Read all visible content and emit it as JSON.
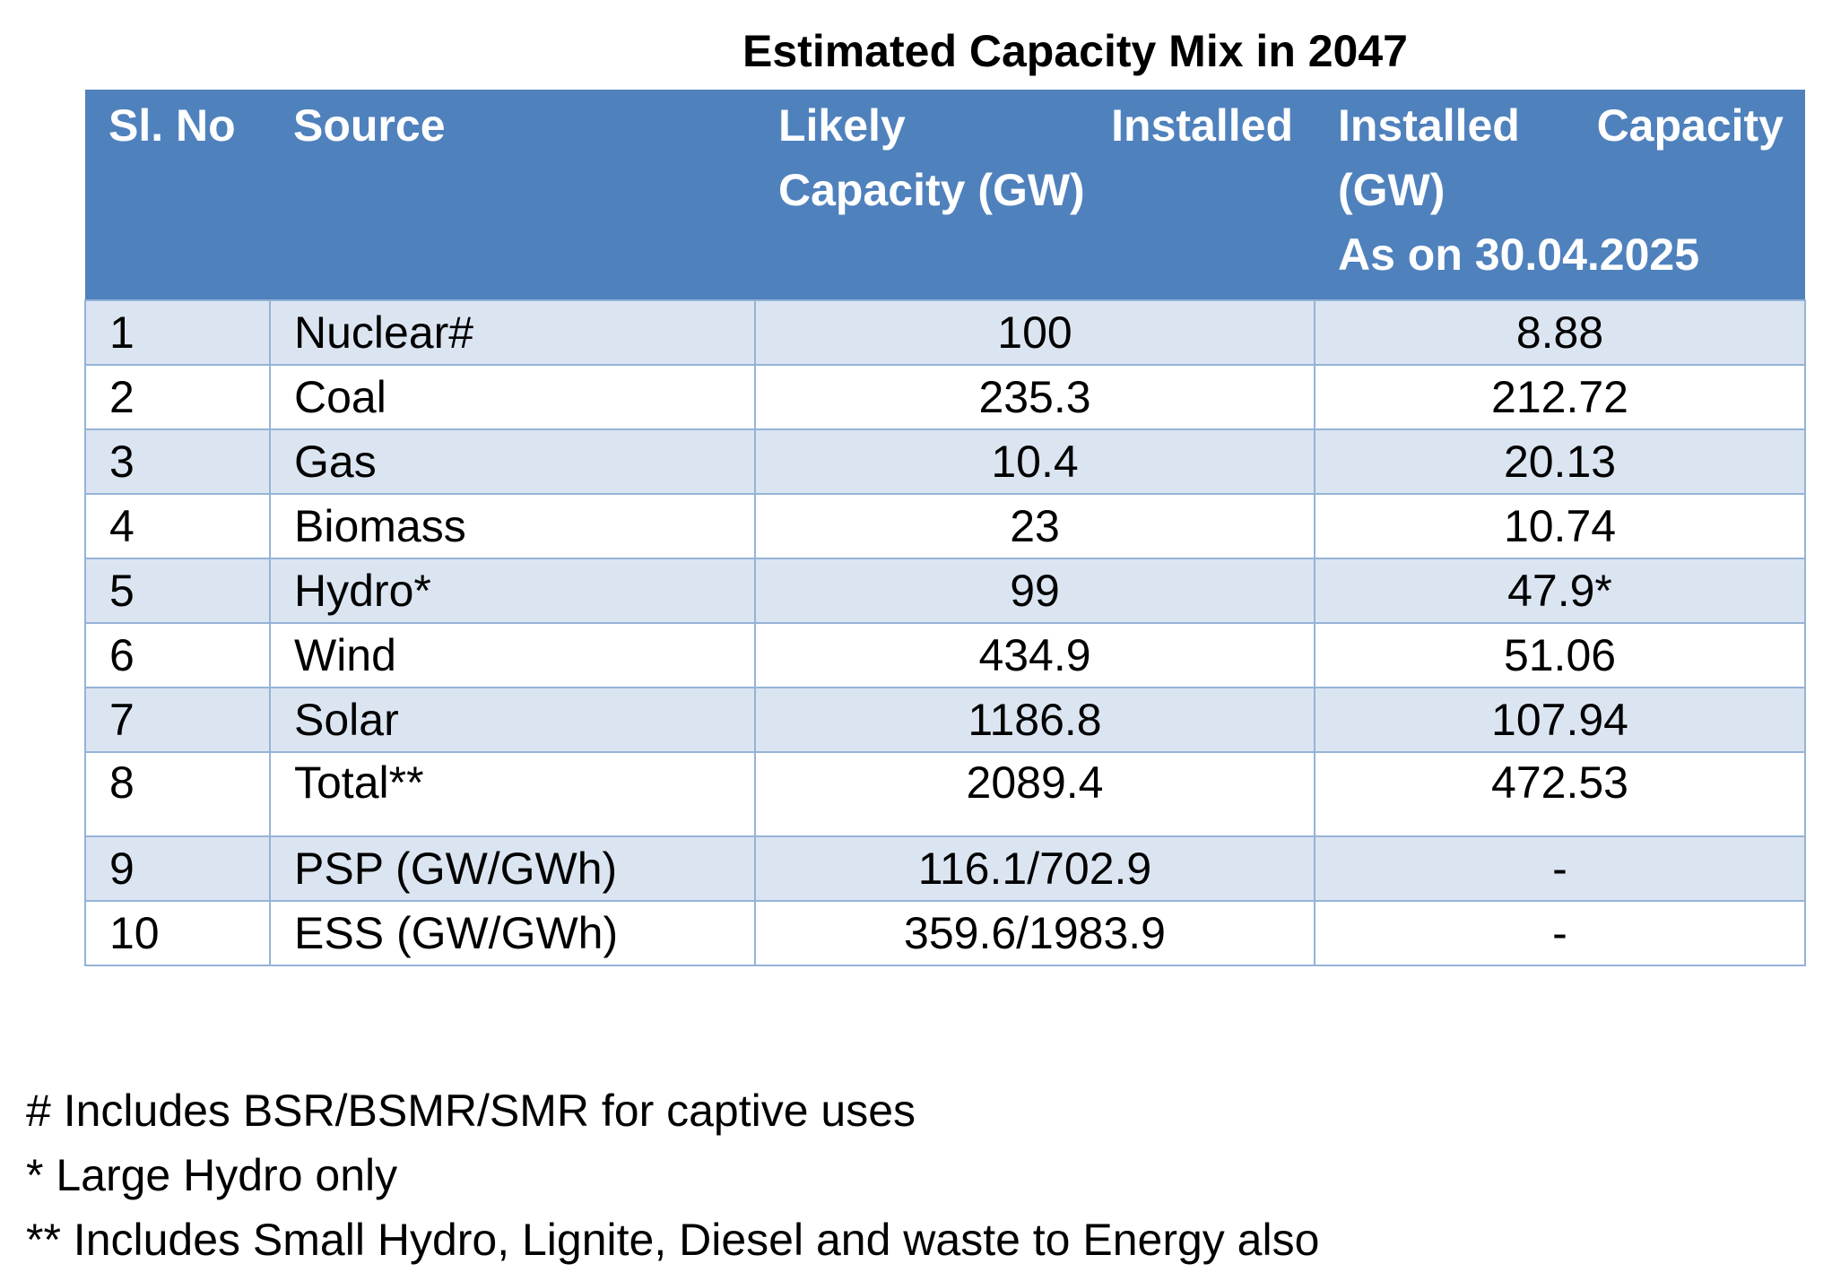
{
  "title": "Estimated Capacity Mix in 2047",
  "headers": {
    "sl_no": "Sl. No",
    "source": "Source",
    "likely": "Likely Installed Capacity (GW)",
    "installed": "Installed Capacity (GW)",
    "installed_date": "As on 30.04.2025"
  },
  "rows": [
    {
      "sl": "1",
      "source": "Nuclear#",
      "likely": "100",
      "installed": "8.88"
    },
    {
      "sl": "2",
      "source": "Coal",
      "likely": "235.3",
      "installed": "212.72"
    },
    {
      "sl": "3",
      "source": "Gas",
      "likely": "10.4",
      "installed": "20.13"
    },
    {
      "sl": "4",
      "source": "Biomass",
      "likely": "23",
      "installed": "10.74"
    },
    {
      "sl": "5",
      "source": "Hydro*",
      "likely": "99",
      "installed": "47.9*"
    },
    {
      "sl": "6",
      "source": "Wind",
      "likely": "434.9",
      "installed": "51.06"
    },
    {
      "sl": "7",
      "source": "Solar",
      "likely": "1186.8",
      "installed": "107.94"
    },
    {
      "sl": "8",
      "source": "Total**",
      "likely": "2089.4",
      "installed": "472.53"
    },
    {
      "sl": "9",
      "source": "PSP (GW/GWh)",
      "likely": "116.1/702.9",
      "installed": "-"
    },
    {
      "sl": "10",
      "source": "ESS (GW/GWh)",
      "likely": "359.6/1983.9",
      "installed": "-"
    }
  ],
  "footnotes": [
    "# Includes BSR/BSMR/SMR for captive uses",
    "* Large Hydro only",
    "** Includes Small Hydro, Lignite, Diesel and waste to Energy also"
  ],
  "colors": {
    "header": "#4f81bd",
    "shade": "#dbe5f1",
    "border": "#95b3d7"
  }
}
